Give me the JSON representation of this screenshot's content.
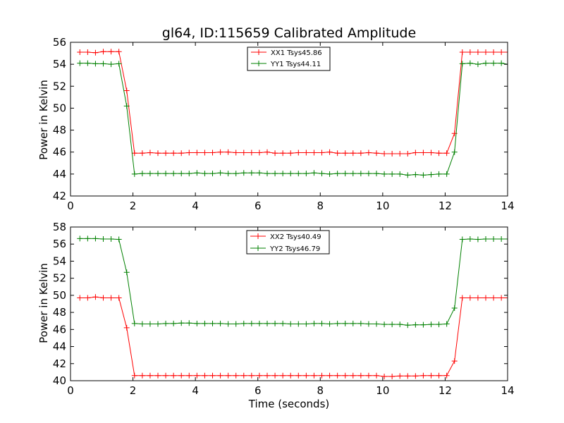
{
  "chart_data": [
    {
      "type": "line",
      "title": "gl64, ID:115659 Calibrated Amplitude",
      "xlabel": "",
      "ylabel": "Power in Kelvin",
      "xlim": [
        0,
        14
      ],
      "ylim": [
        42,
        56
      ],
      "xticks": [
        0,
        2,
        4,
        6,
        8,
        10,
        12,
        14
      ],
      "yticks": [
        42,
        44,
        46,
        48,
        50,
        52,
        54,
        56
      ],
      "grid": false,
      "legend_position": "upper-center",
      "x": [
        0.3,
        0.55,
        0.8,
        1.05,
        1.3,
        1.55,
        1.8,
        2.05,
        2.3,
        2.55,
        2.8,
        3.05,
        3.3,
        3.55,
        3.8,
        4.05,
        4.3,
        4.55,
        4.8,
        5.05,
        5.3,
        5.55,
        5.8,
        6.05,
        6.3,
        6.55,
        6.8,
        7.05,
        7.3,
        7.55,
        7.8,
        8.05,
        8.3,
        8.55,
        8.8,
        9.05,
        9.3,
        9.55,
        9.8,
        10.05,
        10.3,
        10.55,
        10.8,
        11.05,
        11.3,
        11.55,
        11.8,
        12.05,
        12.3,
        12.55,
        12.8,
        13.05,
        13.3,
        13.55,
        13.8,
        14.0
      ],
      "series": [
        {
          "name": "XX1 Tsys45.86",
          "color": "#ff0000",
          "values": [
            55.1,
            55.1,
            55.05,
            55.15,
            55.15,
            55.15,
            51.6,
            45.9,
            45.9,
            45.95,
            45.9,
            45.9,
            45.9,
            45.9,
            45.95,
            45.95,
            45.95,
            45.95,
            46.0,
            46.0,
            45.95,
            45.95,
            45.95,
            45.95,
            46.0,
            45.9,
            45.9,
            45.9,
            45.95,
            45.95,
            45.95,
            45.95,
            46.0,
            45.9,
            45.9,
            45.9,
            45.9,
            45.95,
            45.9,
            45.85,
            45.85,
            45.85,
            45.85,
            45.95,
            45.95,
            45.95,
            45.9,
            45.9,
            47.7,
            55.1,
            55.1,
            55.1,
            55.1,
            55.1,
            55.1,
            55.1
          ]
        },
        {
          "name": "YY1 Tsys44.11",
          "color": "#008000",
          "values": [
            54.1,
            54.1,
            54.05,
            54.05,
            54.0,
            54.05,
            50.2,
            44.0,
            44.05,
            44.05,
            44.05,
            44.05,
            44.05,
            44.05,
            44.05,
            44.1,
            44.05,
            44.05,
            44.1,
            44.05,
            44.05,
            44.1,
            44.1,
            44.1,
            44.05,
            44.05,
            44.05,
            44.05,
            44.05,
            44.05,
            44.1,
            44.05,
            44.0,
            44.05,
            44.05,
            44.05,
            44.05,
            44.05,
            44.05,
            44.0,
            44.0,
            44.0,
            43.9,
            43.95,
            43.9,
            43.95,
            44.0,
            44.0,
            46.0,
            54.05,
            54.1,
            54.0,
            54.1,
            54.1,
            54.1,
            54.0
          ]
        }
      ]
    },
    {
      "type": "line",
      "title": "",
      "xlabel": "Time (seconds)",
      "ylabel": "Power in Kelvin",
      "xlim": [
        0,
        14
      ],
      "ylim": [
        40,
        58
      ],
      "xticks": [
        0,
        2,
        4,
        6,
        8,
        10,
        12,
        14
      ],
      "yticks": [
        40,
        42,
        44,
        46,
        48,
        50,
        52,
        54,
        56,
        58
      ],
      "grid": false,
      "legend_position": "upper-center",
      "x": [
        0.3,
        0.55,
        0.8,
        1.05,
        1.3,
        1.55,
        1.8,
        2.05,
        2.3,
        2.55,
        2.8,
        3.05,
        3.3,
        3.55,
        3.8,
        4.05,
        4.3,
        4.55,
        4.8,
        5.05,
        5.3,
        5.55,
        5.8,
        6.05,
        6.3,
        6.55,
        6.8,
        7.05,
        7.3,
        7.55,
        7.8,
        8.05,
        8.3,
        8.55,
        8.8,
        9.05,
        9.3,
        9.55,
        9.8,
        10.05,
        10.3,
        10.55,
        10.8,
        11.05,
        11.3,
        11.55,
        11.8,
        12.05,
        12.3,
        12.55,
        12.8,
        13.05,
        13.3,
        13.55,
        13.8,
        14.0
      ],
      "series": [
        {
          "name": "XX2 Tsys40.49",
          "color": "#ff0000",
          "values": [
            49.7,
            49.7,
            49.8,
            49.7,
            49.7,
            49.7,
            46.2,
            40.6,
            40.6,
            40.6,
            40.6,
            40.6,
            40.6,
            40.6,
            40.6,
            40.6,
            40.6,
            40.6,
            40.6,
            40.6,
            40.6,
            40.6,
            40.6,
            40.6,
            40.6,
            40.6,
            40.6,
            40.6,
            40.6,
            40.6,
            40.6,
            40.6,
            40.6,
            40.6,
            40.6,
            40.6,
            40.6,
            40.6,
            40.6,
            40.5,
            40.5,
            40.55,
            40.55,
            40.55,
            40.6,
            40.6,
            40.6,
            40.6,
            42.3,
            49.7,
            49.7,
            49.7,
            49.7,
            49.7,
            49.7,
            49.7
          ]
        },
        {
          "name": "YY2 Tsys46.79",
          "color": "#008000",
          "values": [
            56.65,
            56.65,
            56.65,
            56.6,
            56.6,
            56.55,
            52.7,
            46.7,
            46.65,
            46.65,
            46.65,
            46.7,
            46.7,
            46.75,
            46.75,
            46.7,
            46.7,
            46.7,
            46.7,
            46.65,
            46.65,
            46.7,
            46.7,
            46.7,
            46.7,
            46.7,
            46.7,
            46.65,
            46.65,
            46.65,
            46.7,
            46.7,
            46.65,
            46.7,
            46.7,
            46.7,
            46.7,
            46.65,
            46.65,
            46.6,
            46.6,
            46.6,
            46.5,
            46.55,
            46.55,
            46.6,
            46.6,
            46.65,
            48.5,
            56.55,
            56.6,
            56.55,
            56.6,
            56.6,
            56.6,
            56.6
          ]
        }
      ]
    }
  ]
}
